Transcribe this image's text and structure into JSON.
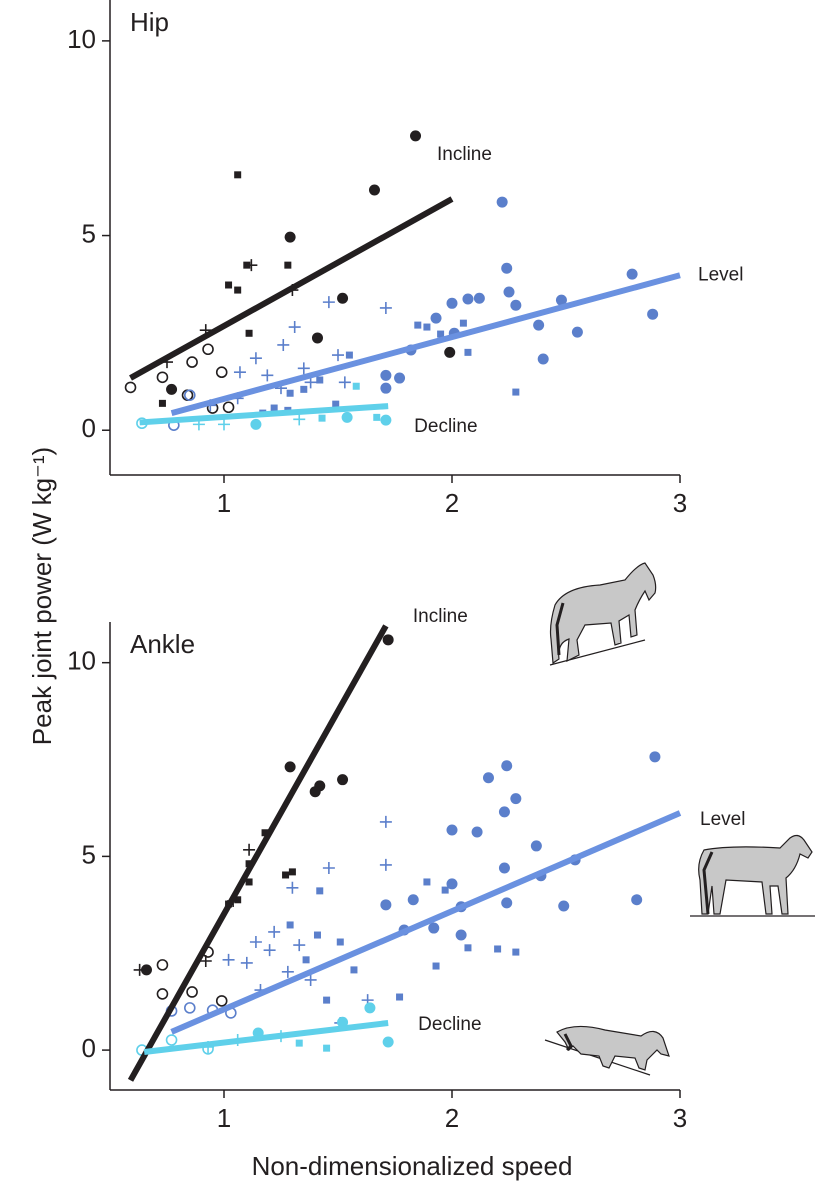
{
  "figure": {
    "ylabel": "Peak joint power (W kg⁻¹)",
    "xlabel": "Non-dimensionalized speed"
  },
  "chart_data": [
    {
      "type": "scatter",
      "title": "Hip",
      "xlim": [
        0.5,
        3
      ],
      "ylim": [
        -1.15,
        11.05
      ],
      "xticks": [
        1,
        2,
        3
      ],
      "yticks": [
        0,
        5,
        10
      ],
      "lines": [
        {
          "name": "Incline",
          "color": "#231f20",
          "x": [
            0.59,
            2.0
          ],
          "values": [
            1.34,
            5.94
          ]
        },
        {
          "name": "Level",
          "color": "#6a91e0",
          "x": [
            0.77,
            3.0
          ],
          "values": [
            0.44,
            3.98
          ]
        },
        {
          "name": "Decline",
          "color": "#5fd0ea",
          "x": [
            0.63,
            1.72
          ],
          "values": [
            0.2,
            0.62
          ]
        }
      ],
      "points": [
        {
          "color": "#231f20",
          "marker": "circle",
          "x": [
            1.84,
            1.66,
            1.29,
            1.52,
            1.41,
            1.99,
            0.77
          ],
          "values": [
            7.56,
            6.17,
            4.96,
            3.39,
            2.37,
            2.0,
            1.05
          ]
        },
        {
          "color": "#231f20",
          "marker": "square",
          "x": [
            1.06,
            1.28,
            1.1,
            1.02,
            1.06,
            1.11,
            0.73
          ],
          "values": [
            6.56,
            4.24,
            4.24,
            3.73,
            3.6,
            2.49,
            0.69
          ]
        },
        {
          "color": "#231f20",
          "marker": "plus",
          "x": [
            1.12,
            1.3,
            0.92,
            0.75
          ],
          "values": [
            4.24,
            3.6,
            2.57,
            1.75
          ]
        },
        {
          "color": "#231f20",
          "marker": "open",
          "x": [
            0.59,
            0.73,
            0.86,
            0.93,
            0.99,
            0.84,
            0.95,
            1.02
          ],
          "values": [
            1.1,
            1.36,
            1.75,
            2.08,
            1.49,
            0.9,
            0.57,
            0.59
          ]
        },
        {
          "color": "#5b7fcb",
          "marker": "circle",
          "x": [
            2.22,
            2.24,
            2.79,
            2.25,
            2.28,
            2.12,
            2.0,
            2.07,
            2.48,
            1.93,
            2.38,
            2.55,
            2.88,
            2.01,
            1.82,
            2.4,
            1.71,
            1.77,
            1.71
          ],
          "values": [
            5.86,
            4.16,
            4.01,
            3.55,
            3.21,
            3.39,
            3.26,
            3.37,
            3.34,
            2.88,
            2.7,
            2.52,
            2.98,
            2.49,
            2.06,
            1.83,
            1.41,
            1.34,
            1.08
          ]
        },
        {
          "color": "#5b7fcb",
          "marker": "square",
          "x": [
            1.85,
            1.89,
            1.95,
            2.05,
            2.07,
            2.28,
            1.55,
            1.29,
            1.35,
            1.42,
            1.22,
            1.17,
            1.28,
            1.49
          ],
          "values": [
            2.7,
            2.65,
            2.47,
            2.75,
            2.0,
            0.98,
            1.93,
            0.95,
            1.05,
            1.29,
            0.57,
            0.44,
            0.51,
            0.67
          ]
        },
        {
          "color": "#5b7fcb",
          "marker": "plus",
          "x": [
            1.71,
            1.46,
            1.31,
            1.26,
            1.14,
            1.07,
            1.19,
            1.35,
            1.5,
            1.38,
            0.94,
            1.06,
            1.25,
            1.53
          ],
          "values": [
            3.14,
            3.29,
            2.65,
            2.19,
            1.85,
            1.49,
            1.41,
            1.59,
            1.93,
            1.23,
            0.64,
            0.82,
            1.08,
            1.23
          ]
        },
        {
          "color": "#5b7fcb",
          "marker": "open",
          "x": [
            0.85,
            0.78
          ],
          "values": [
            0.9,
            0.13
          ]
        },
        {
          "color": "#5fd0ea",
          "marker": "circle",
          "x": [
            1.14,
            1.54,
            1.71
          ],
          "values": [
            0.15,
            0.33,
            0.26
          ]
        },
        {
          "color": "#5fd0ea",
          "marker": "square",
          "x": [
            1.58,
            1.43,
            1.67
          ],
          "values": [
            1.13,
            0.31,
            0.33
          ]
        },
        {
          "color": "#5fd0ea",
          "marker": "plus",
          "x": [
            0.89,
            1.0,
            1.33
          ],
          "values": [
            0.15,
            0.15,
            0.28
          ]
        },
        {
          "color": "#5fd0ea",
          "marker": "open",
          "x": [
            0.64
          ],
          "values": [
            0.18
          ]
        }
      ]
    },
    {
      "type": "scatter",
      "title": "Ankle",
      "xlim": [
        0.5,
        3
      ],
      "ylim": [
        -1.03,
        11.05
      ],
      "xticks": [
        1,
        2,
        3
      ],
      "yticks": [
        0,
        5,
        10
      ],
      "lines": [
        {
          "name": "Incline",
          "color": "#231f20",
          "x": [
            0.59,
            1.71
          ],
          "values": [
            -0.78,
            10.95
          ]
        },
        {
          "name": "Level",
          "color": "#6a91e0",
          "x": [
            0.77,
            3.0
          ],
          "values": [
            0.47,
            6.12
          ]
        },
        {
          "name": "Decline",
          "color": "#5fd0ea",
          "x": [
            0.65,
            1.72
          ],
          "values": [
            -0.05,
            0.7
          ]
        }
      ],
      "points": [
        {
          "color": "#231f20",
          "marker": "circle",
          "x": [
            1.72,
            1.29,
            1.42,
            1.4,
            1.52,
            0.66
          ],
          "values": [
            10.59,
            7.31,
            6.82,
            6.67,
            6.98,
            2.07
          ]
        },
        {
          "color": "#231f20",
          "marker": "square",
          "x": [
            1.18,
            1.11,
            1.11,
            1.27,
            1.3,
            1.06,
            1.02
          ],
          "values": [
            5.61,
            4.81,
            4.34,
            4.52,
            4.6,
            3.88,
            3.77
          ]
        },
        {
          "color": "#231f20",
          "marker": "plus",
          "x": [
            1.11,
            1.04,
            0.92,
            0.63
          ],
          "values": [
            5.17,
            3.85,
            2.3,
            2.07
          ]
        },
        {
          "color": "#231f20",
          "marker": "open",
          "x": [
            0.73,
            0.93,
            0.73,
            0.86,
            0.99
          ],
          "values": [
            2.2,
            2.53,
            1.45,
            1.5,
            1.27
          ]
        },
        {
          "color": "#5b7fcb",
          "marker": "circle",
          "x": [
            2.89,
            2.24,
            2.16,
            2.28,
            2.23,
            2.0,
            2.11,
            2.37,
            2.54,
            2.23,
            2.0,
            2.39,
            1.83,
            1.71,
            2.81,
            2.49,
            2.04,
            1.79,
            2.24,
            1.92,
            2.04
          ],
          "values": [
            7.57,
            7.34,
            7.03,
            6.49,
            6.15,
            5.68,
            5.63,
            5.27,
            4.91,
            4.7,
            4.29,
            4.5,
            3.88,
            3.75,
            3.88,
            3.72,
            3.7,
            3.1,
            3.8,
            3.15,
            2.97
          ]
        },
        {
          "color": "#5b7fcb",
          "marker": "square",
          "x": [
            1.89,
            1.97,
            1.42,
            2.2,
            2.28,
            2.07,
            1.93,
            1.41,
            1.57,
            1.45,
            1.29,
            1.36,
            1.51,
            1.77
          ],
          "values": [
            4.34,
            4.13,
            4.11,
            2.61,
            2.53,
            2.64,
            2.17,
            2.97,
            2.07,
            1.29,
            3.23,
            2.33,
            2.79,
            1.37
          ]
        },
        {
          "color": "#5b7fcb",
          "marker": "plus",
          "x": [
            1.71,
            1.71,
            1.46,
            1.3,
            1.22,
            1.14,
            1.02,
            1.1,
            1.2,
            1.33,
            1.38,
            1.28,
            1.63,
            1.51,
            1.16
          ],
          "values": [
            5.89,
            4.78,
            4.7,
            4.19,
            3.05,
            2.79,
            2.33,
            2.25,
            2.58,
            2.71,
            1.81,
            2.02,
            1.29,
            0.7,
            1.55
          ]
        },
        {
          "color": "#5b7fcb",
          "marker": "open",
          "x": [
            0.85,
            0.95,
            1.03,
            0.77
          ],
          "values": [
            1.09,
            1.03,
            0.96,
            1.01
          ]
        },
        {
          "color": "#5fd0ea",
          "marker": "circle",
          "x": [
            1.15,
            1.52,
            1.64,
            1.72
          ],
          "values": [
            0.44,
            0.72,
            1.09,
            0.21
          ]
        },
        {
          "color": "#5fd0ea",
          "marker": "square",
          "x": [
            1.33,
            1.45
          ],
          "values": [
            0.18,
            0.05
          ]
        },
        {
          "color": "#5fd0ea",
          "marker": "plus",
          "x": [
            0.93,
            1.06,
            1.25
          ],
          "values": [
            0.08,
            0.26,
            0.36
          ]
        },
        {
          "color": "#5fd0ea",
          "marker": "open",
          "x": [
            0.64,
            0.93,
            0.77
          ],
          "values": [
            0,
            0.03,
            0.26
          ]
        }
      ]
    }
  ]
}
